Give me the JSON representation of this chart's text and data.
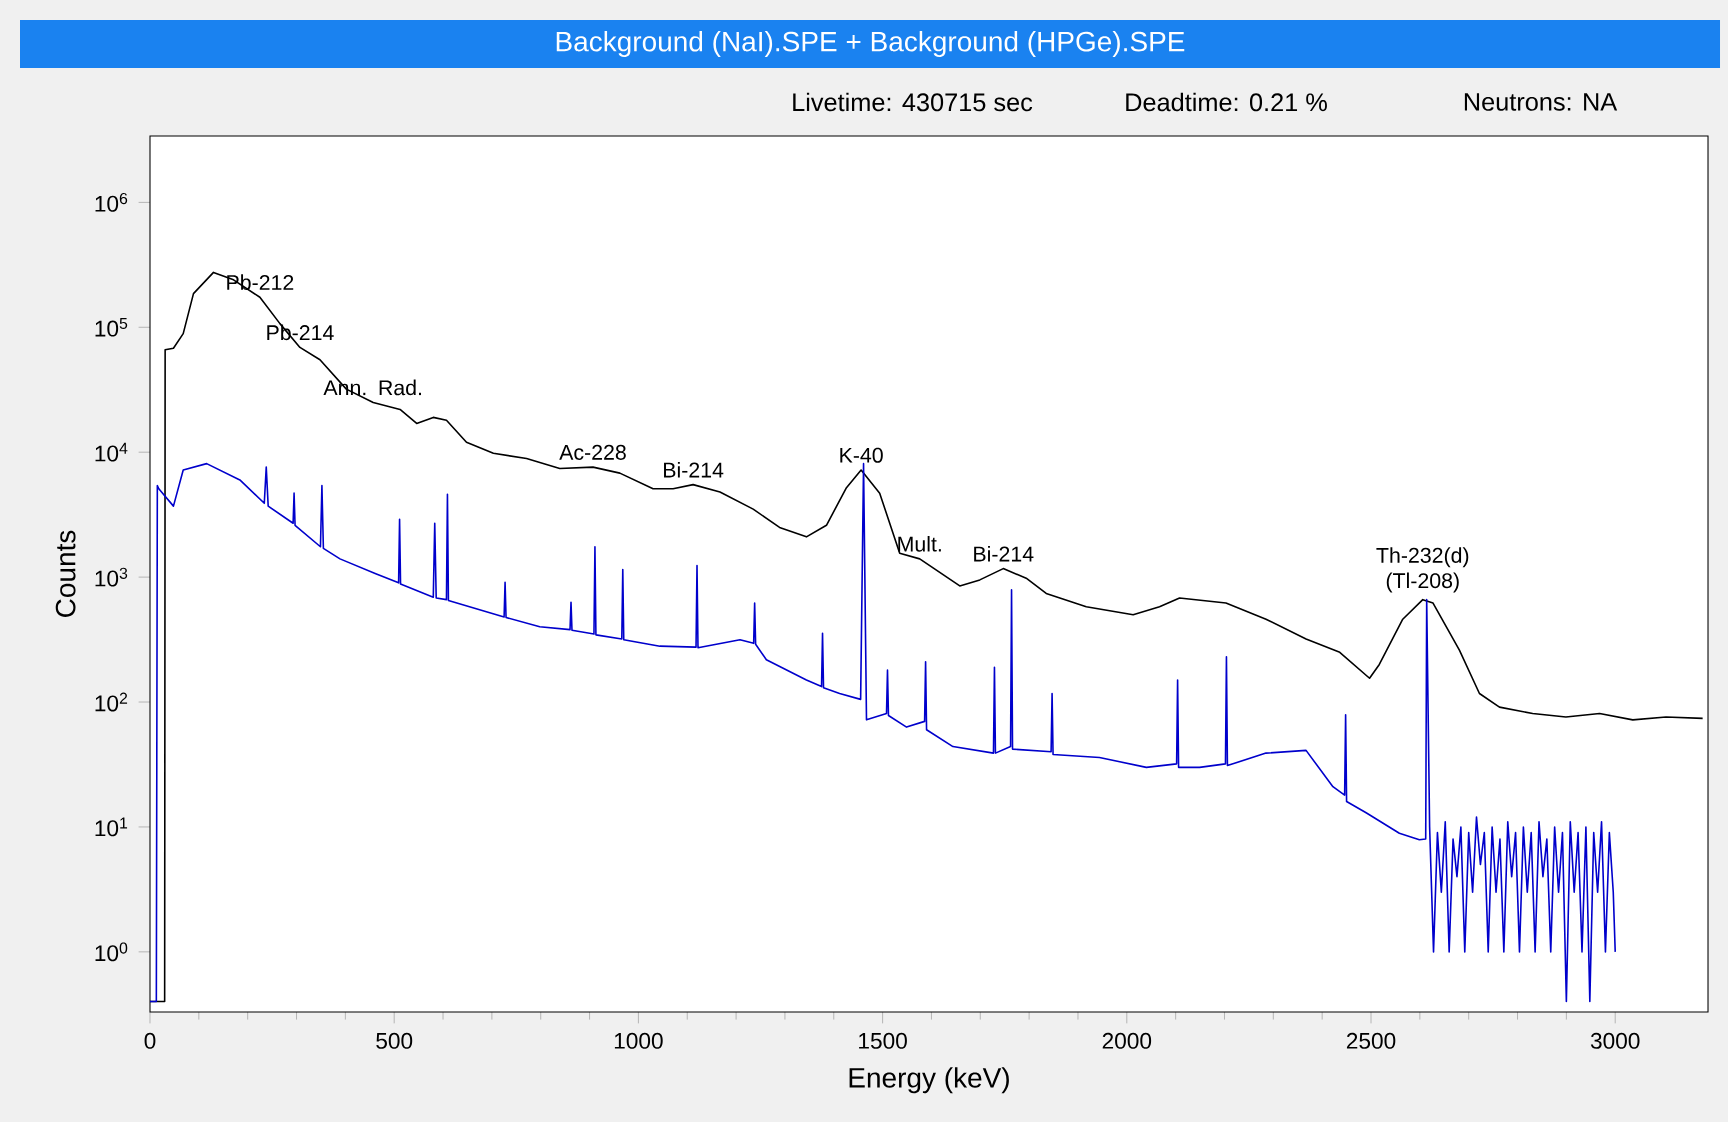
{
  "chart_data": {
    "type": "line",
    "title": "Background (NaI).SPE  +  Background (HPGe).SPE",
    "xlabel": "Energy (keV)",
    "ylabel": "Counts",
    "log": "y",
    "xlim": [
      0,
      3190
    ],
    "xticks": [
      0,
      500,
      1000,
      1500,
      2000,
      2500,
      3000
    ],
    "ylim": [
      0.33,
      3400000
    ],
    "yticks": [
      {
        "value": 1,
        "label": "10$^{0}$"
      },
      {
        "value": 10,
        "label": "10$^{1}$"
      },
      {
        "value": 100,
        "label": "10$^{2}$"
      },
      {
        "value": 1000,
        "label": "10$^{3}$"
      },
      {
        "value": 10000,
        "label": "10$^{4}$"
      },
      {
        "value": 100000,
        "label": "10$^{5}$"
      },
      {
        "value": 1000000,
        "label": "10$^{6}$"
      }
    ],
    "series": [
      {
        "color": "#000000",
        "x": [
          0,
          30,
          31,
          48,
          68,
          89,
          130,
          171,
          225,
          266,
          307,
          348,
          402,
          457,
          512,
          546,
          580,
          607,
          648,
          703,
          771,
          839,
          907,
          962,
          1030,
          1071,
          1112,
          1167,
          1235,
          1289,
          1344,
          1385,
          1426,
          1456,
          1494,
          1535,
          1576,
          1658,
          1699,
          1747,
          1794,
          1835,
          1917,
          2013,
          2067,
          2108,
          2203,
          2285,
          2367,
          2436,
          2497,
          2517,
          2565,
          2606,
          2627,
          2681,
          2722,
          2763,
          2831,
          2899,
          2968,
          3036,
          3104,
          3179
        ],
        "values": [
          0.4,
          0.4,
          66000,
          68000,
          89000,
          186000,
          275000,
          240000,
          174000,
          107000,
          69000,
          55000,
          32000,
          25000,
          22000,
          17000,
          19000,
          18000,
          12000,
          9800,
          8900,
          7400,
          7600,
          6800,
          5100,
          5100,
          5500,
          4800,
          3500,
          2500,
          2100,
          2600,
          5200,
          7200,
          4700,
          1550,
          1400,
          850,
          950,
          1170,
          980,
          740,
          580,
          500,
          580,
          680,
          620,
          460,
          320,
          250,
          155,
          200,
          460,
          660,
          620,
          260,
          117,
          91,
          81,
          76,
          81,
          72,
          76,
          74
        ]
      },
      {
        "color": "#0000cc",
        "x": [
          0,
          13,
          15,
          18,
          48,
          68,
          116,
          184,
          234,
          238,
          242,
          293,
          295,
          297,
          349,
          352,
          355,
          389,
          461,
          509,
          511,
          513,
          580,
          583,
          586,
          607,
          609,
          611,
          725,
          727,
          729,
          798,
          860,
          862,
          864,
          909,
          911,
          913,
          966,
          968,
          970,
          1044,
          1118,
          1120,
          1122,
          1208,
          1236,
          1238,
          1240,
          1262,
          1344,
          1375,
          1377,
          1379,
          1412,
          1455,
          1461,
          1467,
          1508,
          1510,
          1512,
          1549,
          1586,
          1588,
          1590,
          1644,
          1727,
          1729,
          1731,
          1762,
          1764,
          1766,
          1845,
          1847,
          1849,
          1944,
          2040,
          2102,
          2104,
          2106,
          2149,
          2202,
          2204,
          2206,
          2285,
          2367,
          2422,
          2446,
          2448,
          2450,
          2490,
          2558,
          2599,
          2612,
          2614,
          2620,
          2628,
          2636,
          2644,
          2652,
          2660,
          2668,
          2676,
          2684,
          2692,
          2700,
          2708,
          2716,
          2724,
          2732,
          2740,
          2748,
          2756,
          2764,
          2772,
          2780,
          2788,
          2796,
          2804,
          2812,
          2820,
          2828,
          2836,
          2844,
          2852,
          2860,
          2868,
          2876,
          2884,
          2892,
          2900,
          2908,
          2916,
          2924,
          2932,
          2940,
          2948,
          2956,
          2964,
          2972,
          2980,
          2988,
          2996,
          3000
        ],
        "values": [
          0.4,
          0.4,
          5400,
          5100,
          3700,
          7200,
          8100,
          6000,
          3900,
          7600,
          3700,
          2700,
          4700,
          2600,
          1750,
          5400,
          1700,
          1400,
          1070,
          900,
          2900,
          880,
          690,
          2700,
          680,
          660,
          4600,
          650,
          480,
          910,
          475,
          400,
          380,
          630,
          375,
          350,
          1750,
          345,
          320,
          1150,
          315,
          280,
          275,
          1240,
          272,
          315,
          295,
          620,
          290,
          218,
          150,
          133,
          355,
          130,
          117,
          105,
          8100,
          72,
          81,
          180,
          78,
          63,
          70,
          210,
          60,
          44,
          39,
          190,
          39,
          44,
          790,
          42,
          40,
          117,
          38,
          36,
          30,
          32,
          150,
          30,
          30,
          32,
          230,
          31,
          39,
          41,
          21,
          18,
          79,
          16,
          13,
          8.9,
          7.9,
          8,
          660,
          10,
          1,
          9,
          3,
          11,
          1,
          8,
          4,
          10,
          1,
          9,
          3,
          12,
          5,
          9,
          1,
          10,
          3,
          8,
          1,
          11,
          4,
          9,
          1,
          10,
          3,
          9,
          1,
          11,
          4,
          8,
          1,
          10,
          3,
          9,
          0.4,
          11,
          3,
          9,
          1,
          10,
          0.4,
          9,
          3,
          11,
          1,
          9,
          3,
          1
        ]
      }
    ],
    "annotations": [
      "Livetime: 430715 sec",
      "Deadtime: 0.21 %",
      "Neutrons: NA",
      {
        "text": "Pb-212",
        "x": 225,
        "y": 174000
      },
      {
        "text": "Pb-214",
        "x": 307,
        "y": 69000
      },
      {
        "text": "Ann. Rad.",
        "x": 457,
        "y": 25000
      },
      {
        "text": "Ac-228",
        "x": 907,
        "y": 7600
      },
      {
        "text": "Bi-214",
        "x": 1112,
        "y": 5500
      },
      {
        "text": "K-40",
        "x": 1456,
        "y": 7200
      },
      {
        "text": "Mult.",
        "x": 1576,
        "y": 1400
      },
      {
        "text": "Bi-214",
        "x": 1747,
        "y": 1170
      },
      {
        "text": "Th-232(d) (Tl-208)",
        "x": 2606,
        "y": 660
      }
    ]
  }
}
